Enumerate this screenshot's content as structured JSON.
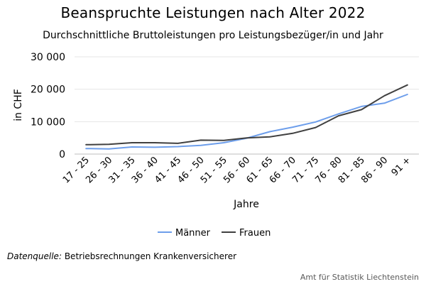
{
  "chart_data": {
    "type": "line",
    "title": "Beanspruchte Leistungen nach Alter 2022",
    "subtitle": "Durchschnittliche Bruttoleistungen pro Leistungsbezüger/in und Jahr",
    "xlabel": "Jahre",
    "ylabel": "in CHF",
    "ylim": [
      0,
      30000
    ],
    "yticks": [
      0,
      10000,
      20000,
      30000
    ],
    "ytick_labels": [
      "0",
      "10 000",
      "20 000",
      "30 000"
    ],
    "grid": "horizontal",
    "legend_position": "bottom",
    "categories": [
      "17 - 25",
      "26 - 30",
      "31 - 35",
      "36 - 40",
      "41 - 45",
      "46 - 50",
      "51 - 55",
      "56 - 60",
      "61 - 65",
      "66 - 70",
      "71 - 75",
      "76 - 80",
      "81 - 85",
      "86 - 90",
      "91 +"
    ],
    "series": [
      {
        "name": "Männer",
        "color": "#6d9eeb",
        "values": [
          1700,
          1600,
          2200,
          2100,
          2300,
          2700,
          3500,
          4900,
          6900,
          8300,
          9900,
          12400,
          14700,
          15700,
          18400
        ]
      },
      {
        "name": "Frauen",
        "color": "#404040",
        "values": [
          2900,
          3000,
          3500,
          3500,
          3300,
          4300,
          4200,
          5000,
          5300,
          6400,
          8200,
          11800,
          13700,
          18000,
          21300
        ]
      }
    ]
  },
  "footer": {
    "source_label": "Datenquelle:",
    "source_text": "Betriebsrechnungen Krankenversicherer",
    "credit": "Amt für Statistik Liechtenstein"
  }
}
